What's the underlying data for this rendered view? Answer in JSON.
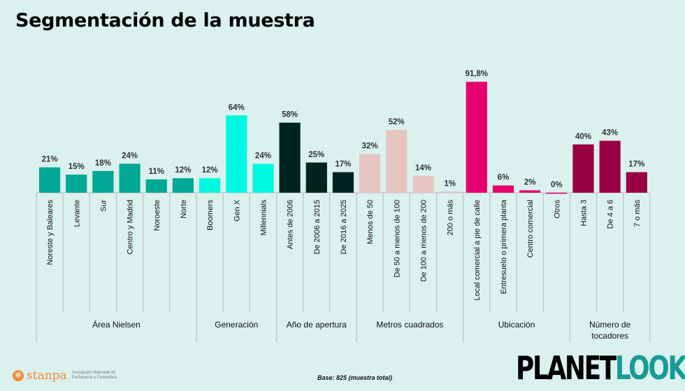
{
  "title": "Segmentación de la muestra",
  "footer": {
    "base": "Base: 825 (muestra total)",
    "logo_left": "stanpa",
    "logo_left_sub": "Asociación Nacional de Perfumería y Cosmética",
    "logo_right_a": "PLANET",
    "logo_right_b": "LOOK"
  },
  "chart_data": {
    "type": "bar",
    "ylim": [
      0,
      100
    ],
    "grid": false,
    "groups": [
      {
        "name": "Área Nielsen",
        "color": "#00a896",
        "categories": [
          "Noreste y Baleares",
          "Levante",
          "Sur",
          "Centro y Madrid",
          "Noroeste",
          "Norte"
        ],
        "values": [
          21,
          15,
          18,
          24,
          11,
          12
        ],
        "labels": [
          "21%",
          "15%",
          "18%",
          "24%",
          "11%",
          "12%"
        ]
      },
      {
        "name": "Generación",
        "color": "#00f8e0",
        "categories": [
          "Boomers",
          "Gen X",
          "Millennials"
        ],
        "values": [
          12,
          64,
          24
        ],
        "labels": [
          "12%",
          "64%",
          "24%"
        ]
      },
      {
        "name": "Año de apertura",
        "color": "#00231f",
        "categories": [
          "Antes de 2006",
          "De 2006 a 2015",
          "De 2016 a 2025"
        ],
        "values": [
          58,
          25,
          17
        ],
        "labels": [
          "58%",
          "25%",
          "17%"
        ]
      },
      {
        "name": "Metros cuadrados",
        "color": "#e6c5c0",
        "categories": [
          "Menos de 50",
          "De 50 a menos de 100",
          "De 100 a menos de 200",
          "200 o más"
        ],
        "values": [
          32,
          52,
          14,
          1
        ],
        "labels": [
          "32%",
          "52%",
          "14%",
          "1%"
        ]
      },
      {
        "name": "Ubicación",
        "color": "#e6006e",
        "categories": [
          "Local comercial a pie de calle",
          "Entresuelo o primera planta",
          "Centro comercial",
          "Otros"
        ],
        "values": [
          91.8,
          6,
          2,
          0
        ],
        "labels": [
          "91,8%",
          "6%",
          "2%",
          "0%"
        ]
      },
      {
        "name": "Número de tocadores",
        "color": "#990044",
        "categories": [
          "Hasta 3",
          "De 4 a 6",
          "7 o más"
        ],
        "values": [
          40,
          43,
          17
        ],
        "labels": [
          "40%",
          "43%",
          "17%"
        ]
      }
    ]
  }
}
